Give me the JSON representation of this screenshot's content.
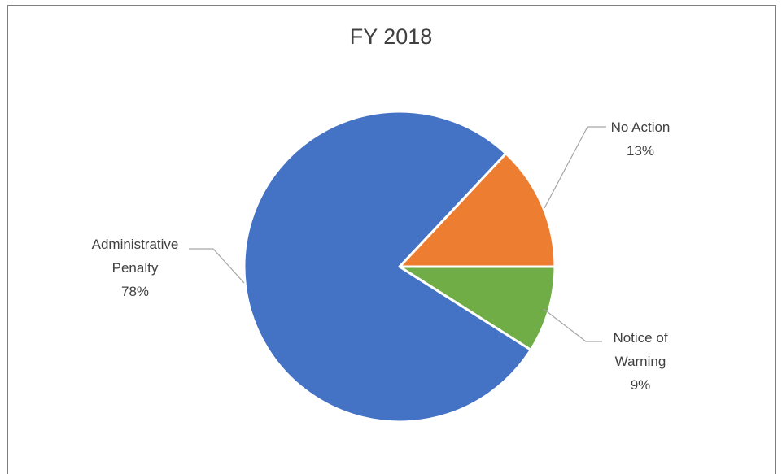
{
  "chart_data": {
    "type": "pie",
    "title": "FY 2018",
    "slices": [
      {
        "label_lines": [
          "No Action"
        ],
        "value": 13,
        "pct_label": "13%",
        "color": "#ED7D31"
      },
      {
        "label_lines": [
          "Notice of",
          "Warning"
        ],
        "value": 9,
        "pct_label": "9%",
        "color": "#70AD47"
      },
      {
        "label_lines": [
          "Administrative",
          "Penalty"
        ],
        "value": 78,
        "pct_label": "78%",
        "color": "#4472C4"
      }
    ],
    "legend": "none",
    "data_labels": "outside with leader lines"
  }
}
